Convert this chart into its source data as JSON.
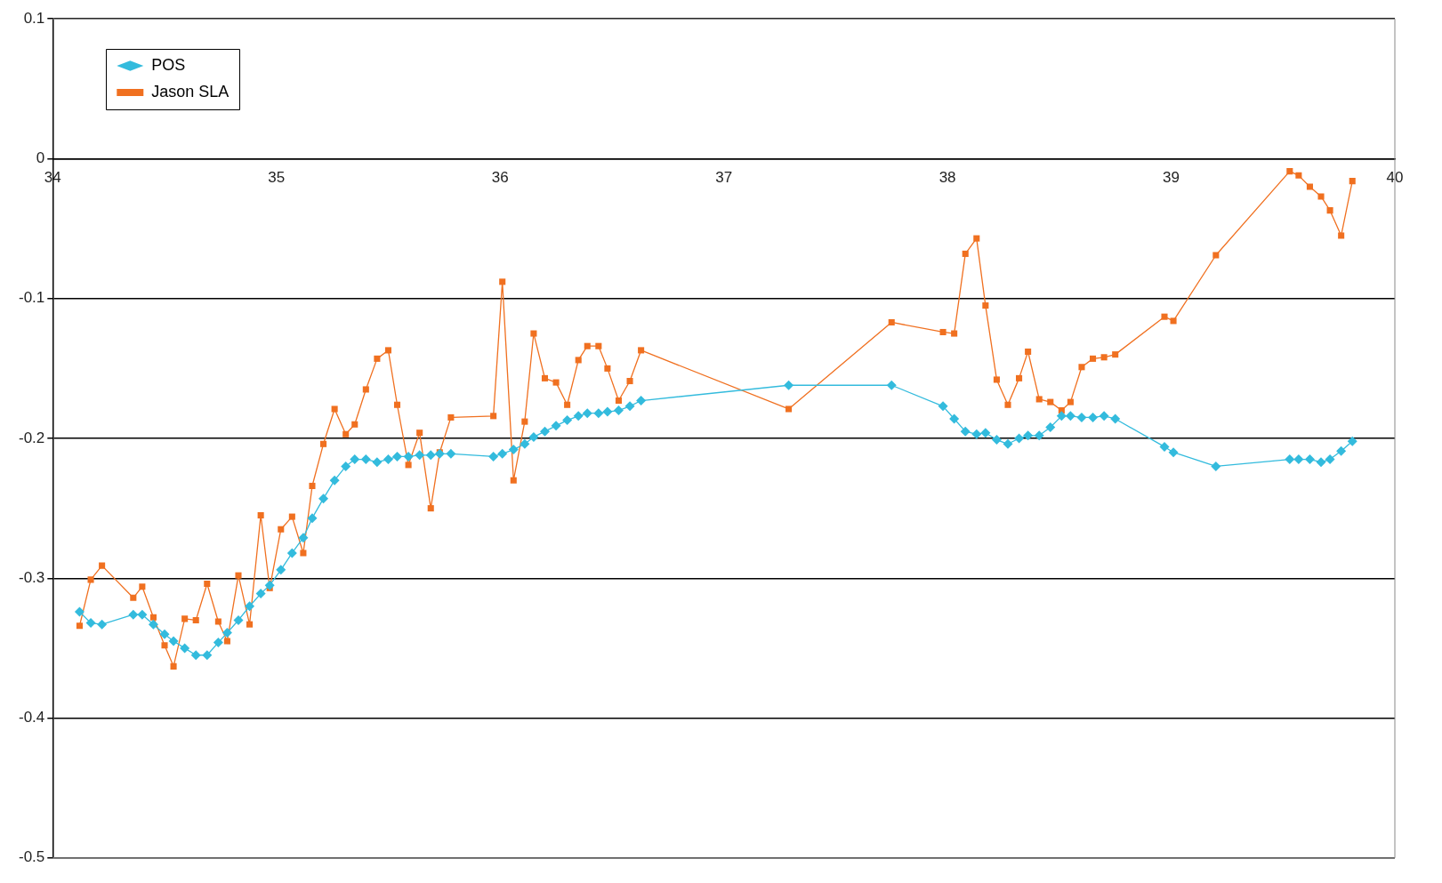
{
  "chart_data": {
    "type": "line",
    "xlim": [
      34,
      40
    ],
    "xticks": [
      34,
      35,
      36,
      37,
      38,
      39,
      40
    ],
    "ylim": [
      -0.5,
      0.1
    ],
    "yticks": [
      -0.5,
      -0.4,
      -0.3,
      -0.2,
      -0.1,
      0,
      0.1
    ],
    "grid": "y",
    "legend": "top left",
    "line_style": "solid",
    "series": [
      {
        "name": "POS",
        "color": "#33bbdd",
        "marker": "diamond",
        "x": [
          34.12,
          34.17,
          34.22,
          34.36,
          34.4,
          34.45,
          34.5,
          34.54,
          34.59,
          34.64,
          34.69,
          34.74,
          34.78,
          34.83,
          34.88,
          34.93,
          34.97,
          35.02,
          35.07,
          35.12,
          35.16,
          35.21,
          35.26,
          35.31,
          35.35,
          35.4,
          35.45,
          35.5,
          35.54,
          35.59,
          35.64,
          35.69,
          35.73,
          35.78,
          35.97,
          36.01,
          36.06,
          36.11,
          36.15,
          36.2,
          36.25,
          36.3,
          36.35,
          36.39,
          36.44,
          36.48,
          36.53,
          36.58,
          36.63,
          37.29,
          37.75,
          37.98,
          38.03,
          38.08,
          38.13,
          38.17,
          38.22,
          38.27,
          38.32,
          38.36,
          38.41,
          38.46,
          38.51,
          38.55,
          38.6,
          38.65,
          38.7,
          38.75,
          38.97,
          39.01,
          39.2,
          39.53,
          39.57,
          39.62,
          39.67,
          39.71,
          39.76,
          39.81
        ],
        "values": [
          -0.324,
          -0.332,
          -0.333,
          -0.326,
          -0.326,
          -0.333,
          -0.34,
          -0.345,
          -0.35,
          -0.355,
          -0.355,
          -0.346,
          -0.339,
          -0.33,
          -0.32,
          -0.311,
          -0.305,
          -0.294,
          -0.282,
          -0.271,
          -0.257,
          -0.243,
          -0.23,
          -0.22,
          -0.215,
          -0.215,
          -0.217,
          -0.215,
          -0.213,
          -0.213,
          -0.212,
          -0.212,
          -0.211,
          -0.211,
          -0.213,
          -0.211,
          -0.208,
          -0.204,
          -0.199,
          -0.195,
          -0.191,
          -0.187,
          -0.184,
          -0.182,
          -0.182,
          -0.181,
          -0.18,
          -0.177,
          -0.173,
          -0.162,
          -0.162,
          -0.177,
          -0.186,
          -0.195,
          -0.197,
          -0.196,
          -0.201,
          -0.204,
          -0.2,
          -0.198,
          -0.198,
          -0.192,
          -0.184,
          -0.184,
          -0.185,
          -0.185,
          -0.184,
          -0.186,
          -0.206,
          -0.21,
          -0.22,
          -0.215,
          -0.215,
          -0.215,
          -0.217,
          -0.215,
          -0.209,
          -0.202
        ]
      },
      {
        "name": "Jason SLA",
        "color": "#f07020",
        "marker": "square",
        "x": [
          34.12,
          34.17,
          34.22,
          34.36,
          34.4,
          34.45,
          34.5,
          34.54,
          34.59,
          34.64,
          34.69,
          34.74,
          34.78,
          34.83,
          34.88,
          34.93,
          34.97,
          35.02,
          35.07,
          35.12,
          35.16,
          35.21,
          35.26,
          35.31,
          35.35,
          35.4,
          35.45,
          35.5,
          35.54,
          35.59,
          35.64,
          35.69,
          35.73,
          35.78,
          35.97,
          36.01,
          36.06,
          36.11,
          36.15,
          36.2,
          36.25,
          36.3,
          36.35,
          36.39,
          36.44,
          36.48,
          36.53,
          36.58,
          36.63,
          37.29,
          37.75,
          37.98,
          38.03,
          38.08,
          38.13,
          38.17,
          38.22,
          38.27,
          38.32,
          38.36,
          38.41,
          38.46,
          38.51,
          38.55,
          38.6,
          38.65,
          38.7,
          38.75,
          38.97,
          39.01,
          39.2,
          39.53,
          39.57,
          39.62,
          39.67,
          39.71,
          39.76,
          39.81
        ],
        "values": [
          -0.334,
          -0.301,
          -0.291,
          -0.314,
          -0.306,
          -0.328,
          -0.348,
          -0.363,
          -0.329,
          -0.33,
          -0.304,
          -0.331,
          -0.345,
          -0.298,
          -0.333,
          -0.255,
          -0.307,
          -0.265,
          -0.256,
          -0.282,
          -0.234,
          -0.204,
          -0.179,
          -0.197,
          -0.19,
          -0.165,
          -0.143,
          -0.137,
          -0.176,
          -0.219,
          -0.196,
          -0.25,
          -0.21,
          -0.185,
          -0.184,
          -0.088,
          -0.23,
          -0.188,
          -0.125,
          -0.157,
          -0.16,
          -0.176,
          -0.144,
          -0.134,
          -0.134,
          -0.15,
          -0.173,
          -0.159,
          -0.137,
          -0.179,
          -0.117,
          -0.124,
          -0.125,
          -0.068,
          -0.057,
          -0.105,
          -0.158,
          -0.176,
          -0.157,
          -0.138,
          -0.172,
          -0.174,
          -0.18,
          -0.174,
          -0.149,
          -0.143,
          -0.142,
          -0.14,
          -0.113,
          -0.116,
          -0.069,
          -0.009,
          -0.012,
          -0.02,
          -0.027,
          -0.037,
          -0.055,
          -0.016
        ]
      }
    ]
  }
}
